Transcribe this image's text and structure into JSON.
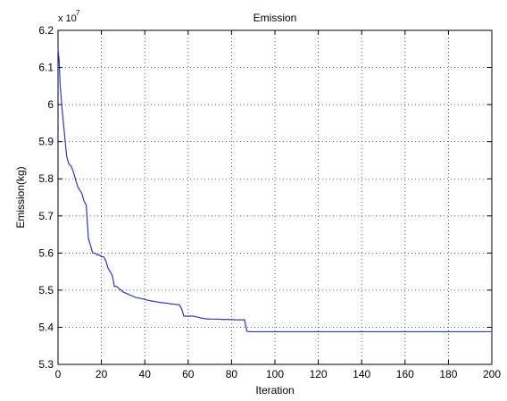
{
  "chart_data": {
    "type": "line",
    "title": "Emission",
    "xlabel": "Iteration",
    "ylabel": "Emission(kg)",
    "y_multiplier_label": "x 10",
    "y_multiplier_exponent": "7",
    "xlim": [
      0,
      200
    ],
    "ylim": [
      5.3,
      6.2
    ],
    "x_ticks": [
      0,
      20,
      40,
      60,
      80,
      100,
      120,
      140,
      160,
      180,
      200
    ],
    "y_ticks": [
      5.3,
      5.4,
      5.5,
      5.6,
      5.7,
      5.8,
      5.9,
      6.0,
      6.1,
      6.2
    ],
    "x_tick_labels": [
      "0",
      "20",
      "40",
      "60",
      "80",
      "100",
      "120",
      "140",
      "160",
      "180",
      "200"
    ],
    "y_tick_labels": [
      "5.3",
      "5.4",
      "5.5",
      "5.6",
      "5.7",
      "5.8",
      "5.9",
      "6",
      "6.1",
      "6.2"
    ],
    "grid": true,
    "line_color": "#3333cc",
    "series": [
      {
        "x": [
          0,
          0.5,
          1,
          2,
          3,
          4,
          5,
          6,
          7,
          8,
          9,
          10,
          11,
          12,
          13,
          14,
          15,
          16,
          17,
          18,
          19,
          20,
          21,
          22,
          23,
          24,
          25,
          26,
          27,
          28,
          29,
          30,
          32,
          34,
          36,
          38,
          40,
          42,
          44,
          46,
          48,
          50,
          52,
          54,
          56,
          57,
          58,
          60,
          62,
          64,
          66,
          68,
          70,
          72,
          74,
          76,
          78,
          80,
          82,
          84,
          86,
          87,
          88,
          90,
          100,
          120,
          140,
          160,
          180,
          200
        ],
        "y": [
          6.15,
          6.12,
          6.05,
          5.98,
          5.92,
          5.86,
          5.84,
          5.835,
          5.82,
          5.8,
          5.78,
          5.77,
          5.76,
          5.74,
          5.73,
          5.64,
          5.62,
          5.6,
          5.6,
          5.595,
          5.595,
          5.59,
          5.59,
          5.58,
          5.56,
          5.55,
          5.54,
          5.51,
          5.51,
          5.505,
          5.5,
          5.495,
          5.49,
          5.485,
          5.48,
          5.478,
          5.475,
          5.472,
          5.47,
          5.468,
          5.466,
          5.465,
          5.463,
          5.462,
          5.46,
          5.45,
          5.43,
          5.43,
          5.43,
          5.428,
          5.425,
          5.423,
          5.422,
          5.422,
          5.422,
          5.421,
          5.421,
          5.421,
          5.42,
          5.42,
          5.42,
          5.39,
          5.388,
          5.388,
          5.388,
          5.388,
          5.388,
          5.388,
          5.388,
          5.388
        ]
      }
    ]
  }
}
